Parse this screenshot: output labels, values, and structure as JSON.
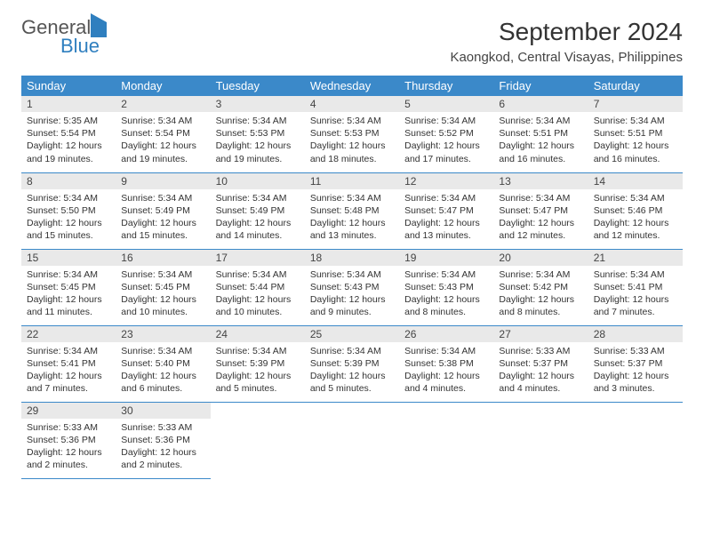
{
  "logo": {
    "line1": "General",
    "line2": "Blue"
  },
  "title": "September 2024",
  "location": "Kaongkod, Central Visayas, Philippines",
  "colors": {
    "header_bg": "#3b89c9",
    "header_text": "#ffffff",
    "daynum_bg": "#e9e9e9",
    "row_border": "#3b89c9",
    "logo_accent": "#2f7fbf"
  },
  "weekdays": [
    "Sunday",
    "Monday",
    "Tuesday",
    "Wednesday",
    "Thursday",
    "Friday",
    "Saturday"
  ],
  "layout": {
    "weeks": 5,
    "cols": 7,
    "start_col": 0,
    "days_in_month": 30
  },
  "days": [
    {
      "n": 1,
      "sunrise": "5:35 AM",
      "sunset": "5:54 PM",
      "daylight": "12 hours and 19 minutes."
    },
    {
      "n": 2,
      "sunrise": "5:34 AM",
      "sunset": "5:54 PM",
      "daylight": "12 hours and 19 minutes."
    },
    {
      "n": 3,
      "sunrise": "5:34 AM",
      "sunset": "5:53 PM",
      "daylight": "12 hours and 19 minutes."
    },
    {
      "n": 4,
      "sunrise": "5:34 AM",
      "sunset": "5:53 PM",
      "daylight": "12 hours and 18 minutes."
    },
    {
      "n": 5,
      "sunrise": "5:34 AM",
      "sunset": "5:52 PM",
      "daylight": "12 hours and 17 minutes."
    },
    {
      "n": 6,
      "sunrise": "5:34 AM",
      "sunset": "5:51 PM",
      "daylight": "12 hours and 16 minutes."
    },
    {
      "n": 7,
      "sunrise": "5:34 AM",
      "sunset": "5:51 PM",
      "daylight": "12 hours and 16 minutes."
    },
    {
      "n": 8,
      "sunrise": "5:34 AM",
      "sunset": "5:50 PM",
      "daylight": "12 hours and 15 minutes."
    },
    {
      "n": 9,
      "sunrise": "5:34 AM",
      "sunset": "5:49 PM",
      "daylight": "12 hours and 15 minutes."
    },
    {
      "n": 10,
      "sunrise": "5:34 AM",
      "sunset": "5:49 PM",
      "daylight": "12 hours and 14 minutes."
    },
    {
      "n": 11,
      "sunrise": "5:34 AM",
      "sunset": "5:48 PM",
      "daylight": "12 hours and 13 minutes."
    },
    {
      "n": 12,
      "sunrise": "5:34 AM",
      "sunset": "5:47 PM",
      "daylight": "12 hours and 13 minutes."
    },
    {
      "n": 13,
      "sunrise": "5:34 AM",
      "sunset": "5:47 PM",
      "daylight": "12 hours and 12 minutes."
    },
    {
      "n": 14,
      "sunrise": "5:34 AM",
      "sunset": "5:46 PM",
      "daylight": "12 hours and 12 minutes."
    },
    {
      "n": 15,
      "sunrise": "5:34 AM",
      "sunset": "5:45 PM",
      "daylight": "12 hours and 11 minutes."
    },
    {
      "n": 16,
      "sunrise": "5:34 AM",
      "sunset": "5:45 PM",
      "daylight": "12 hours and 10 minutes."
    },
    {
      "n": 17,
      "sunrise": "5:34 AM",
      "sunset": "5:44 PM",
      "daylight": "12 hours and 10 minutes."
    },
    {
      "n": 18,
      "sunrise": "5:34 AM",
      "sunset": "5:43 PM",
      "daylight": "12 hours and 9 minutes."
    },
    {
      "n": 19,
      "sunrise": "5:34 AM",
      "sunset": "5:43 PM",
      "daylight": "12 hours and 8 minutes."
    },
    {
      "n": 20,
      "sunrise": "5:34 AM",
      "sunset": "5:42 PM",
      "daylight": "12 hours and 8 minutes."
    },
    {
      "n": 21,
      "sunrise": "5:34 AM",
      "sunset": "5:41 PM",
      "daylight": "12 hours and 7 minutes."
    },
    {
      "n": 22,
      "sunrise": "5:34 AM",
      "sunset": "5:41 PM",
      "daylight": "12 hours and 7 minutes."
    },
    {
      "n": 23,
      "sunrise": "5:34 AM",
      "sunset": "5:40 PM",
      "daylight": "12 hours and 6 minutes."
    },
    {
      "n": 24,
      "sunrise": "5:34 AM",
      "sunset": "5:39 PM",
      "daylight": "12 hours and 5 minutes."
    },
    {
      "n": 25,
      "sunrise": "5:34 AM",
      "sunset": "5:39 PM",
      "daylight": "12 hours and 5 minutes."
    },
    {
      "n": 26,
      "sunrise": "5:34 AM",
      "sunset": "5:38 PM",
      "daylight": "12 hours and 4 minutes."
    },
    {
      "n": 27,
      "sunrise": "5:33 AM",
      "sunset": "5:37 PM",
      "daylight": "12 hours and 4 minutes."
    },
    {
      "n": 28,
      "sunrise": "5:33 AM",
      "sunset": "5:37 PM",
      "daylight": "12 hours and 3 minutes."
    },
    {
      "n": 29,
      "sunrise": "5:33 AM",
      "sunset": "5:36 PM",
      "daylight": "12 hours and 2 minutes."
    },
    {
      "n": 30,
      "sunrise": "5:33 AM",
      "sunset": "5:36 PM",
      "daylight": "12 hours and 2 minutes."
    }
  ],
  "labels": {
    "sunrise": "Sunrise:",
    "sunset": "Sunset:",
    "daylight": "Daylight:"
  }
}
